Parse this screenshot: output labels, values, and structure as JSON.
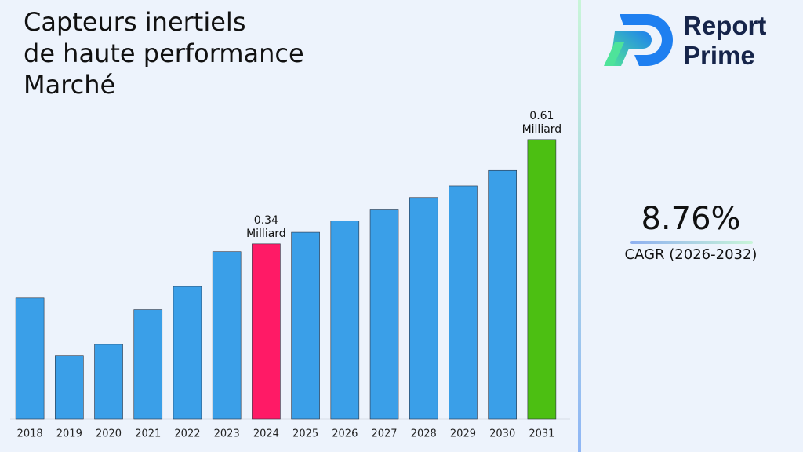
{
  "chart_data": {
    "type": "bar",
    "title": "Capteurs inertiels\nde haute performance\nMarché",
    "categories": [
      "2018",
      "2019",
      "2020",
      "2021",
      "2022",
      "2023",
      "2024",
      "2025",
      "2026",
      "2027",
      "2028",
      "2029",
      "2030",
      "2031"
    ],
    "values": [
      0.2,
      0.05,
      0.08,
      0.17,
      0.23,
      0.32,
      0.34,
      0.37,
      0.4,
      0.43,
      0.46,
      0.49,
      0.53,
      0.61
    ],
    "value_labels": [
      null,
      null,
      null,
      null,
      null,
      null,
      "0.34\nMilliard",
      null,
      null,
      null,
      null,
      null,
      null,
      "0.61\nMilliard"
    ],
    "colors": [
      "#3a9fe8",
      "#3a9fe8",
      "#3a9fe8",
      "#3a9fe8",
      "#3a9fe8",
      "#3a9fe8",
      "#ff1a66",
      "#3a9fe8",
      "#3a9fe8",
      "#3a9fe8",
      "#3a9fe8",
      "#3a9fe8",
      "#3a9fe8",
      "#4cbf12"
    ],
    "ylim": [
      -0.113,
      0.69
    ]
  },
  "cagr": {
    "value": "8.76%",
    "label": "CAGR (2026-2032)"
  },
  "logo": {
    "line1": "Report",
    "line2": "Prime"
  }
}
